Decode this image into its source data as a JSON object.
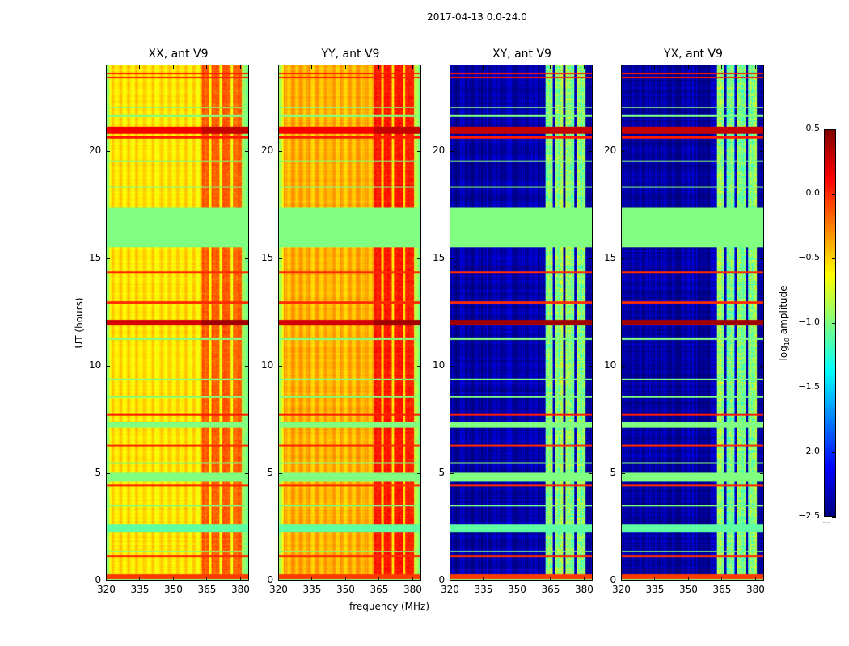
{
  "chart_data": {
    "type": "heatmap",
    "title": "2017-04-13 0.0-24.0",
    "xlabel": "frequency (MHz)",
    "ylabel": "UT (hours)",
    "xlim": [
      320,
      384
    ],
    "ylim": [
      0,
      24
    ],
    "xticks": [
      320,
      335,
      350,
      365,
      380
    ],
    "yticks": [
      0,
      5,
      10,
      15,
      20
    ],
    "colormap": "jet",
    "colorbar": {
      "label": "log10 amplitude",
      "label_main": "log",
      "label_sub": "10",
      "label_rest": " amplitude",
      "range": [
        -2.5,
        0.5
      ],
      "ticks": [
        0.5,
        0.0,
        -0.5,
        -1.0,
        -1.5,
        -2.0,
        -2.5
      ],
      "tick_labels": [
        "0.5",
        "0.0",
        "−0.5",
        "−1.0",
        "−1.5",
        "−2.0",
        "−2.5"
      ]
    },
    "band_mhz": [
      363,
      381
    ],
    "band_gaps_mhz": [
      [
        366.3,
        367.3
      ],
      [
        371,
        372
      ],
      [
        376,
        377
      ]
    ],
    "panels": [
      {
        "title": "XX, ant V9",
        "background": -0.55,
        "band": -0.15,
        "edge": -0.95,
        "noise": 0.12
      },
      {
        "title": "YY, ant V9",
        "background": -0.4,
        "band": 0.05,
        "edge": -0.9,
        "noise": 0.12
      },
      {
        "title": "XY, ant V9",
        "background": -2.4,
        "band": -0.95,
        "edge": -2.4,
        "noise": 0.35
      },
      {
        "title": "YX, ant V9",
        "background": -2.4,
        "band": -0.95,
        "edge": -2.4,
        "noise": 0.35
      }
    ],
    "flagged_rows_hours": [
      [
        0.0,
        0.05,
        -1.0
      ],
      [
        0.05,
        0.25,
        -0.05
      ],
      [
        1.05,
        1.15,
        0.0
      ],
      [
        1.3,
        1.35,
        -1.0
      ],
      [
        2.2,
        2.6,
        -1.1
      ],
      [
        3.4,
        3.5,
        -1.0
      ],
      [
        4.35,
        4.45,
        0.0
      ],
      [
        4.6,
        5.0,
        -1.0
      ],
      [
        5.45,
        5.5,
        -1.0
      ],
      [
        6.25,
        6.32,
        0.0
      ],
      [
        7.1,
        7.35,
        -1.0
      ],
      [
        7.65,
        7.72,
        0.05
      ],
      [
        8.5,
        8.55,
        -1.0
      ],
      [
        9.3,
        9.4,
        -1.0
      ],
      [
        11.2,
        11.3,
        -1.0
      ],
      [
        11.85,
        12.15,
        0.4
      ],
      [
        12.9,
        13.0,
        0.0
      ],
      [
        14.3,
        14.4,
        0.0
      ],
      [
        15.5,
        17.4,
        -1.0
      ],
      [
        18.3,
        18.35,
        -1.0
      ],
      [
        19.5,
        19.55,
        -1.0
      ],
      [
        20.6,
        20.7,
        0.05
      ],
      [
        20.8,
        21.15,
        0.3
      ],
      [
        21.6,
        21.7,
        -1.0
      ],
      [
        22.0,
        22.05,
        -1.0
      ],
      [
        23.4,
        23.48,
        0.05
      ],
      [
        23.6,
        23.66,
        0.05
      ]
    ]
  }
}
